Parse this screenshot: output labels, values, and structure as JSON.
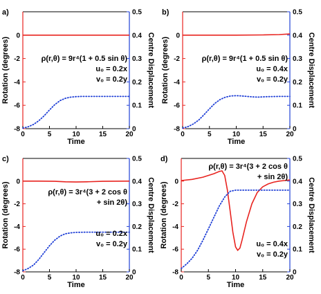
{
  "chart_data": [
    {
      "type": "line",
      "panel_label": "a)",
      "xlabel": "Time",
      "ylabel": "Rotation (degrees)",
      "y2label": "Centre Displacement",
      "xlim": [
        0,
        20
      ],
      "ylim": [
        -8,
        2
      ],
      "y2lim": [
        0,
        0.5
      ],
      "xticks": [
        "0",
        "5",
        "10",
        "15",
        "20"
      ],
      "yticks": [
        "-8",
        "-6",
        "-4",
        "-2",
        "0"
      ],
      "y2ticks": [
        "0",
        "0.1",
        "0.2",
        "0.3",
        "0.4",
        "0.5"
      ],
      "annotations": [
        "ρ(r,θ) = 9r⁴(1 + 0.5 sin θ)",
        "u₀ = 0.2x",
        "v₀ = 0.2y"
      ],
      "series": [
        {
          "axis": "left",
          "color": "#e8231f",
          "style": "solid",
          "x": [
            0,
            5,
            10,
            15,
            20
          ],
          "y": [
            0,
            0,
            0,
            0,
            0
          ]
        },
        {
          "axis": "right",
          "color": "#1f3fd6",
          "style": "dotted",
          "x": [
            0,
            1,
            2,
            3,
            4,
            5,
            6,
            7,
            8,
            9,
            10,
            11,
            12,
            14,
            16,
            18,
            20
          ],
          "y": [
            0.002,
            0.008,
            0.018,
            0.034,
            0.055,
            0.08,
            0.103,
            0.12,
            0.13,
            0.135,
            0.137,
            0.138,
            0.138,
            0.138,
            0.138,
            0.138,
            0.138
          ]
        }
      ]
    },
    {
      "type": "line",
      "panel_label": "b)",
      "xlabel": "Time",
      "ylabel": "Rotation (degrees)",
      "y2label": "Centre Displacement",
      "xlim": [
        0,
        20
      ],
      "ylim": [
        -8,
        2
      ],
      "y2lim": [
        0,
        0.5
      ],
      "xticks": [
        "0",
        "5",
        "10",
        "15",
        "20"
      ],
      "yticks": [
        "-8",
        "-6",
        "-4",
        "-2",
        "0"
      ],
      "y2ticks": [
        "0",
        "0.1",
        "0.2",
        "0.3",
        "0.4",
        "0.5"
      ],
      "annotations": [
        "ρ(r,θ) = 9r⁴(1 + 0.5 sin θ)",
        "u₀ = 0.4x",
        "v₀ = 0.2y"
      ],
      "series": [
        {
          "axis": "left",
          "color": "#e8231f",
          "style": "solid",
          "x": [
            0,
            5,
            10,
            15,
            18,
            20
          ],
          "y": [
            0,
            0,
            0,
            0.02,
            0.05,
            0.1
          ]
        },
        {
          "axis": "right",
          "color": "#1f3fd6",
          "style": "dotted",
          "x": [
            0,
            1,
            2,
            3,
            4,
            5,
            6,
            7,
            8,
            9,
            10,
            11,
            12,
            13,
            14,
            15,
            16,
            18,
            20
          ],
          "y": [
            0.002,
            0.009,
            0.02,
            0.037,
            0.06,
            0.085,
            0.108,
            0.125,
            0.135,
            0.14,
            0.141,
            0.14,
            0.138,
            0.136,
            0.135,
            0.136,
            0.137,
            0.138,
            0.138
          ]
        }
      ]
    },
    {
      "type": "line",
      "panel_label": "c)",
      "xlabel": "Time",
      "ylabel": "Rotation (degrees)",
      "y2label": "Centre Displacement",
      "xlim": [
        0,
        20
      ],
      "ylim": [
        -8,
        2
      ],
      "y2lim": [
        0,
        0.5
      ],
      "xticks": [
        "0",
        "5",
        "10",
        "15",
        "20"
      ],
      "yticks": [
        "-8",
        "-6",
        "-4",
        "-2",
        "0"
      ],
      "y2ticks": [
        "0",
        "0.1",
        "0.2",
        "0.3",
        "0.4",
        "0.5"
      ],
      "annotations": [
        "ρ(r,θ) = 3r⁴(3 + 2 cos θ",
        "+ sin 2θ)",
        "u₀ = 0.2x",
        "v₀ = 0.2y"
      ],
      "series": [
        {
          "axis": "left",
          "color": "#e8231f",
          "style": "solid",
          "x": [
            0,
            3,
            6,
            8,
            10,
            12,
            15,
            20
          ],
          "y": [
            0,
            0,
            -0.02,
            -0.06,
            -0.08,
            -0.06,
            -0.02,
            0
          ]
        },
        {
          "axis": "right",
          "color": "#1f3fd6",
          "style": "dotted",
          "x": [
            0,
            1,
            2,
            3,
            4,
            5,
            6,
            7,
            8,
            9,
            10,
            12,
            14,
            16,
            18,
            20
          ],
          "y": [
            0.005,
            0.015,
            0.03,
            0.055,
            0.085,
            0.115,
            0.14,
            0.158,
            0.168,
            0.172,
            0.174,
            0.175,
            0.175,
            0.175,
            0.175,
            0.175
          ]
        }
      ]
    },
    {
      "type": "line",
      "panel_label": "d)",
      "xlabel": "Time",
      "ylabel": "Rotation (degrees)",
      "y2label": "Centre Displacement",
      "xlim": [
        0,
        20
      ],
      "ylim": [
        -8,
        2
      ],
      "y2lim": [
        0,
        0.5
      ],
      "xticks": [
        "0",
        "5",
        "10",
        "15",
        "20"
      ],
      "yticks": [
        "-8",
        "-6",
        "-4",
        "-2",
        "0"
      ],
      "y2ticks": [
        "0",
        "0.1",
        "0.2",
        "0.3",
        "0.4",
        "0.5"
      ],
      "annotations": [
        "ρ(r,θ) = 3r⁴(3 + 2 cos θ",
        "+ sin 2θ)",
        "u₀ = 0.4x",
        "v₀ = 0.2y"
      ],
      "series": [
        {
          "axis": "left",
          "color": "#e8231f",
          "style": "solid",
          "x": [
            0,
            2,
            4,
            6,
            7,
            7.5,
            8,
            8.5,
            9,
            9.5,
            10,
            10.4,
            10.8,
            11.2,
            12,
            13,
            14,
            15,
            16,
            17,
            18,
            19,
            20
          ],
          "y": [
            0.05,
            0.15,
            0.35,
            0.65,
            0.85,
            0.9,
            0.5,
            -0.8,
            -2.6,
            -4.5,
            -5.8,
            -6.1,
            -5.9,
            -5.2,
            -3.6,
            -2.0,
            -1.0,
            -0.5,
            -0.25,
            -0.1,
            0,
            0.05,
            0.1
          ]
        },
        {
          "axis": "right",
          "color": "#1f3fd6",
          "style": "dotted",
          "x": [
            0,
            1,
            2,
            3,
            4,
            5,
            6,
            7,
            8,
            9,
            10,
            11,
            12,
            14,
            16,
            18,
            20
          ],
          "y": [
            0.015,
            0.035,
            0.06,
            0.095,
            0.14,
            0.19,
            0.24,
            0.29,
            0.33,
            0.355,
            0.36,
            0.36,
            0.36,
            0.36,
            0.36,
            0.36,
            0.36
          ]
        }
      ]
    }
  ]
}
